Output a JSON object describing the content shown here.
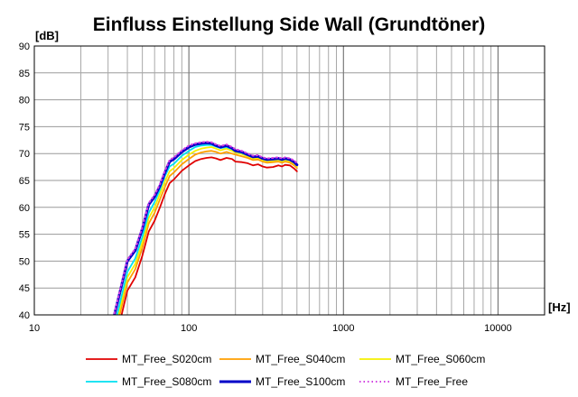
{
  "chart_data": {
    "type": "line",
    "title": "Einfluss Einstellung Side Wall (Grundtöner)",
    "ylabel": "[dB]",
    "xlabel": "[Hz]",
    "x_scale": "log",
    "xlim": [
      10,
      20000
    ],
    "ylim": [
      40,
      90
    ],
    "x_tick_labels": [
      "10",
      "100",
      "1000",
      "10000"
    ],
    "y_tick_labels": [
      "40",
      "45",
      "50",
      "55",
      "60",
      "65",
      "70",
      "75",
      "80",
      "85",
      "90"
    ],
    "grid": true,
    "legend_position": "bottom",
    "x": [
      33,
      36,
      40,
      45,
      50,
      55,
      60,
      65,
      70,
      75,
      80,
      90,
      100,
      110,
      120,
      130,
      140,
      150,
      160,
      175,
      190,
      200,
      220,
      240,
      260,
      280,
      300,
      320,
      350,
      380,
      400,
      420,
      450,
      480,
      500
    ],
    "series": [
      {
        "name": "MT_Free_S020cm",
        "color": "#e00000",
        "style": "solid",
        "width": 1.8,
        "values": [
          35,
          39,
          44.5,
          47,
          51,
          55.5,
          57.5,
          60,
          62.5,
          64.5,
          65.2,
          66.8,
          67.8,
          68.6,
          69,
          69.2,
          69.3,
          69.1,
          68.8,
          69.2,
          69,
          68.5,
          68.4,
          68.2,
          67.8,
          68,
          67.6,
          67.4,
          67.5,
          67.8,
          67.6,
          67.9,
          67.8,
          67.2,
          66.7
        ]
      },
      {
        "name": "MT_Free_S040cm",
        "color": "#ff9f00",
        "style": "solid",
        "width": 1.8,
        "values": [
          36,
          40.5,
          46,
          48.5,
          52.5,
          57,
          59,
          61.5,
          63.8,
          65.8,
          66.5,
          68,
          69,
          69.8,
          70.2,
          70.4,
          70.5,
          70.3,
          70,
          70.3,
          70,
          69.8,
          69.5,
          69.2,
          68.8,
          68.9,
          68.5,
          68.3,
          68.4,
          68.5,
          68.3,
          68.5,
          68.3,
          67.8,
          67.3
        ]
      },
      {
        "name": "MT_Free_S060cm",
        "color": "#f4f000",
        "style": "solid",
        "width": 1.8,
        "values": [
          37,
          41.5,
          47,
          49.5,
          53.5,
          58,
          60,
          62.5,
          64.8,
          66.7,
          67.3,
          68.8,
          69.8,
          70.5,
          70.9,
          71.1,
          71.2,
          70.9,
          70.6,
          70.9,
          70.5,
          70.2,
          69.9,
          69.5,
          69.1,
          69.2,
          68.8,
          68.6,
          68.7,
          68.8,
          68.6,
          68.8,
          68.6,
          68.1,
          67.6
        ]
      },
      {
        "name": "MT_Free_S080cm",
        "color": "#00e0f0",
        "style": "solid",
        "width": 1.8,
        "values": [
          38,
          42.5,
          48,
          50.5,
          54.5,
          59,
          61,
          63.3,
          65.8,
          67.6,
          68.1,
          69.6,
          70.5,
          71.2,
          71.5,
          71.6,
          71.6,
          71.3,
          71,
          71.2,
          70.8,
          70.4,
          70.1,
          69.7,
          69.3,
          69.4,
          69,
          68.8,
          68.9,
          69,
          68.8,
          69,
          68.8,
          68.3,
          67.8
        ]
      },
      {
        "name": "MT_Free_S100cm",
        "color": "#0000c8",
        "style": "solid",
        "width": 3.0,
        "values": [
          40,
          44.5,
          50,
          52,
          56,
          60.5,
          62,
          64,
          66.5,
          68.5,
          69,
          70.3,
          71.2,
          71.7,
          71.9,
          72,
          71.9,
          71.5,
          71.2,
          71.5,
          71,
          70.5,
          70.3,
          69.8,
          69.4,
          69.5,
          69.1,
          68.9,
          69,
          69.1,
          68.9,
          69.1,
          68.9,
          68.4,
          67.9
        ]
      },
      {
        "name": "MT_Free_Free",
        "color": "#d040e0",
        "style": "dotted",
        "width": 2.0,
        "values": [
          40.3,
          44.8,
          50.3,
          52.3,
          56.3,
          60.8,
          62.3,
          64.3,
          66.8,
          68.8,
          69.3,
          70.6,
          71.5,
          71.9,
          72.1,
          72.2,
          72.1,
          71.7,
          71.4,
          71.7,
          71.2,
          70.8,
          70.5,
          70,
          69.6,
          69.7,
          69.3,
          69.1,
          69.2,
          69.3,
          69.1,
          69.3,
          69.1,
          68.7,
          68.2
        ]
      }
    ]
  }
}
